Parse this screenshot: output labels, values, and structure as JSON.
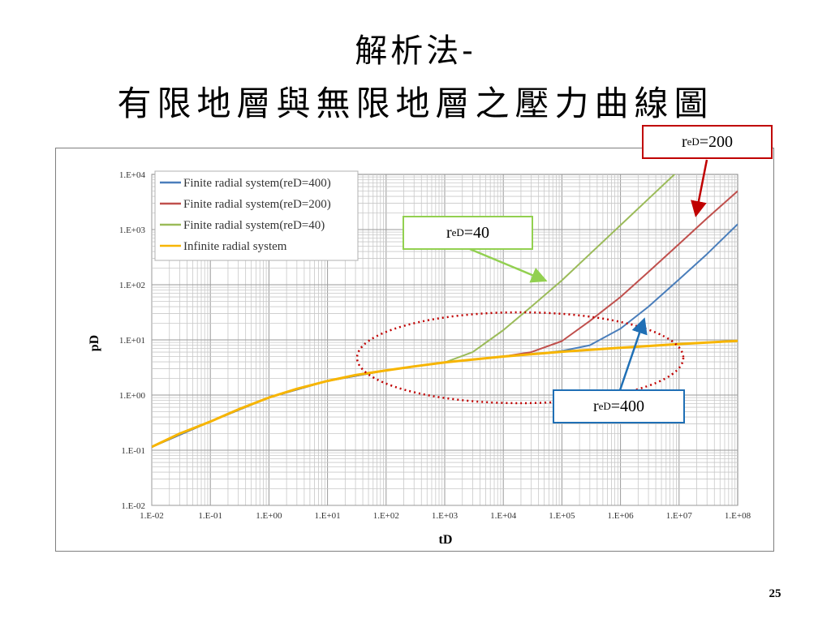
{
  "title": {
    "line1": "解析法-",
    "line2": "有限地層與無限地層之壓力曲線圖"
  },
  "page_number": "25",
  "callouts": {
    "red": {
      "r": "r",
      "sub": "eD",
      "value": "=200",
      "color": "#c00000"
    },
    "green": {
      "r": "r",
      "sub": "eD",
      "value": "=40",
      "color": "#92d050"
    },
    "blue": {
      "r": "r",
      "sub": "eD",
      "value": "=400",
      "color": "#1f6fb5"
    }
  },
  "chart_data": {
    "type": "line",
    "xscale": "log",
    "yscale": "log",
    "xlabel": "tD",
    "ylabel": "pD",
    "xlim": [
      0.01,
      100000000
    ],
    "ylim": [
      0.01,
      10000
    ],
    "xticks": [
      "1.E-02",
      "1.E-01",
      "1.E+00",
      "1.E+01",
      "1.E+02",
      "1.E+03",
      "1.E+04",
      "1.E+05",
      "1.E+06",
      "1.E+07",
      "1.E+08"
    ],
    "yticks": [
      "1.E-02",
      "1.E-01",
      "1.E+00",
      "1.E+01",
      "1.E+02",
      "1.E+03",
      "1.E+04"
    ],
    "grid": true,
    "legend": "top-left",
    "annotation_ellipse": {
      "x_range": [
        30,
        3000000
      ],
      "y_range": [
        0.9,
        60
      ],
      "color": "#c00000",
      "style": "dotted"
    },
    "series": [
      {
        "name": "Finite radial system(reD=400)",
        "color": "#4a7ebb",
        "x": [
          0.01,
          0.1,
          1,
          10,
          100,
          1000,
          10000,
          50000,
          100000,
          300000,
          1000000,
          3000000,
          10000000,
          30000000,
          100000000
        ],
        "y": [
          0.115,
          0.33,
          0.9,
          1.8,
          2.8,
          3.9,
          5.0,
          5.8,
          6.3,
          8.0,
          16,
          40,
          125,
          360,
          1250
        ]
      },
      {
        "name": "Finite radial system(reD=200)",
        "color": "#c0504d",
        "x": [
          0.01,
          0.1,
          1,
          10,
          100,
          1000,
          10000,
          30000,
          100000,
          300000,
          1000000,
          3000000,
          10000000,
          30000000,
          100000000
        ],
        "y": [
          0.115,
          0.33,
          0.9,
          1.8,
          2.8,
          3.9,
          5.0,
          6.0,
          9.5,
          22,
          60,
          170,
          550,
          1600,
          5000
        ]
      },
      {
        "name": "Finite radial system(reD=40)",
        "color": "#9bbb59",
        "x": [
          0.01,
          0.1,
          1,
          10,
          100,
          1000,
          3000,
          10000,
          30000,
          100000,
          300000,
          1000000,
          3000000,
          10000000,
          15000000
        ],
        "y": [
          0.115,
          0.33,
          0.9,
          1.8,
          2.8,
          3.9,
          6,
          15,
          40,
          120,
          360,
          1200,
          3600,
          12000,
          18000
        ]
      },
      {
        "name": "Infinite radial system",
        "color": "#f7b500",
        "x": [
          0.01,
          0.03,
          0.1,
          0.3,
          1,
          3,
          10,
          30,
          100,
          300,
          1000,
          3000,
          10000,
          100000,
          1000000,
          10000000,
          100000000
        ],
        "y": [
          0.115,
          0.2,
          0.33,
          0.55,
          0.9,
          1.3,
          1.8,
          2.3,
          2.8,
          3.3,
          3.9,
          4.4,
          5.0,
          6.1,
          7.2,
          8.4,
          9.6
        ]
      }
    ]
  }
}
